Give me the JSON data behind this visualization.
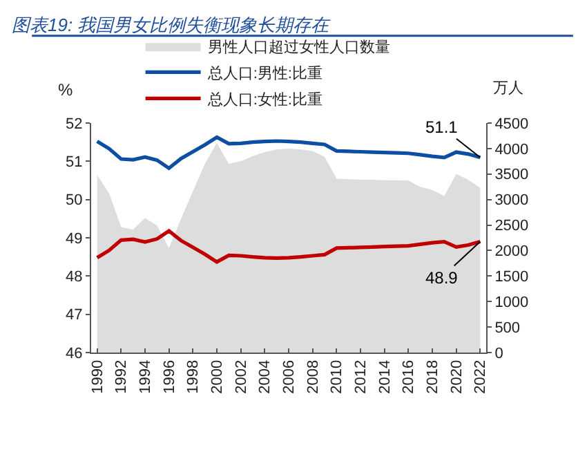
{
  "chart_data": {
    "type": "line",
    "title": "图表19: 我国男女比例失衡现象长期存在",
    "ylabel": "%",
    "y2label": "万人",
    "x": [
      1990,
      1991,
      1992,
      1993,
      1994,
      1995,
      1996,
      1997,
      1998,
      1999,
      2000,
      2001,
      2002,
      2003,
      2004,
      2005,
      2006,
      2007,
      2008,
      2009,
      2010,
      2011,
      2012,
      2013,
      2014,
      2015,
      2016,
      2017,
      2018,
      2019,
      2020,
      2021,
      2022
    ],
    "series": [
      {
        "name": "男性人口超过女性人口数量",
        "type": "area",
        "axis": "y2",
        "color": "#dddddd",
        "values": [
          3480,
          3120,
          2460,
          2410,
          2640,
          2490,
          2050,
          2620,
          3160,
          3700,
          4110,
          3700,
          3750,
          3850,
          3930,
          3980,
          4000,
          3980,
          3950,
          3840,
          3410,
          3400,
          3390,
          3390,
          3380,
          3380,
          3370,
          3250,
          3190,
          3070,
          3500,
          3390,
          3230
        ]
      },
      {
        "name": "总人口:男性:比重",
        "color": "#0b4ea2",
        "values": [
          51.52,
          51.33,
          51.06,
          51.04,
          51.11,
          51.03,
          50.82,
          51.07,
          51.25,
          51.43,
          51.63,
          51.46,
          51.47,
          51.5,
          51.52,
          51.53,
          51.52,
          51.5,
          51.47,
          51.44,
          51.27,
          51.26,
          51.25,
          51.24,
          51.23,
          51.22,
          51.21,
          51.17,
          51.13,
          51.1,
          51.24,
          51.19,
          51.1
        ]
      },
      {
        "name": "总人口:女性:比重",
        "color": "#c00000",
        "values": [
          48.48,
          48.67,
          48.94,
          48.96,
          48.89,
          48.97,
          49.18,
          48.93,
          48.75,
          48.57,
          48.37,
          48.54,
          48.53,
          48.5,
          48.48,
          48.47,
          48.48,
          48.5,
          48.53,
          48.56,
          48.73,
          48.74,
          48.75,
          48.76,
          48.77,
          48.78,
          48.79,
          48.83,
          48.87,
          48.9,
          48.76,
          48.81,
          48.9
        ]
      }
    ],
    "annotations": [
      {
        "text": "51.1",
        "x": 2022,
        "y": 51.1
      },
      {
        "text": "48.9",
        "x": 2022,
        "y": 48.9
      }
    ],
    "xlim": [
      1989.5,
      2022.5
    ],
    "xticks": [
      1990,
      1992,
      1994,
      1996,
      1998,
      2000,
      2002,
      2004,
      2006,
      2008,
      2010,
      2012,
      2014,
      2016,
      2018,
      2020,
      2022
    ],
    "ylim": [
      46,
      52
    ],
    "yticks": [
      46,
      47,
      48,
      49,
      50,
      51,
      52
    ],
    "y2lim": [
      0,
      4500
    ],
    "y2ticks": [
      0,
      500,
      1000,
      1500,
      2000,
      2500,
      3000,
      3500,
      4000,
      4500
    ],
    "legend": "top",
    "marker": "none",
    "line_style": "solid"
  }
}
